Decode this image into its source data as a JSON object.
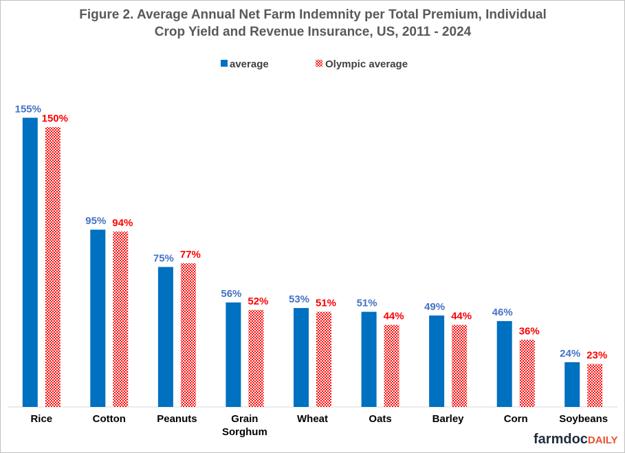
{
  "chart_data": {
    "type": "bar",
    "title_lines": [
      "Figure 2.  Average Annual Net Farm Indemnity per Total Premium, Individual",
      "Crop Yield and Revenue Insurance, US,  2011 - 2024"
    ],
    "categories": [
      [
        "Rice"
      ],
      [
        "Cotton"
      ],
      [
        "Peanuts"
      ],
      [
        "Grain",
        "Sorghum"
      ],
      [
        "Wheat"
      ],
      [
        "Oats"
      ],
      [
        "Barley"
      ],
      [
        "Corn"
      ],
      [
        "Soybeans"
      ]
    ],
    "series": [
      {
        "name": "average",
        "color": "#0070c0",
        "pattern": "solid",
        "values": [
          155,
          95,
          75,
          56,
          53,
          51,
          49,
          46,
          24
        ],
        "labels": [
          "155%",
          "95%",
          "75%",
          "56%",
          "53%",
          "51%",
          "49%",
          "46%",
          "24%"
        ],
        "label_color": "#4472c4"
      },
      {
        "name": "Olympic average",
        "color": "#ff0000",
        "pattern": "checker",
        "values": [
          150,
          94,
          77,
          52,
          51,
          44,
          44,
          36,
          23
        ],
        "labels": [
          "150%",
          "94%",
          "77%",
          "52%",
          "51%",
          "44%",
          "44%",
          "36%",
          "23%"
        ],
        "label_color": "#ff0000"
      }
    ],
    "ylim": [
      0,
      175
    ],
    "grid": false,
    "legend_position": "top"
  },
  "logo": {
    "part1": "farmdoc",
    "part2": "DAILY"
  }
}
